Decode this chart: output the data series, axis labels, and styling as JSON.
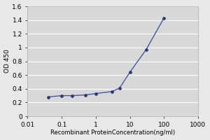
{
  "x": [
    0.04,
    0.1,
    0.2,
    0.5,
    1.0,
    3.0,
    5.0,
    10.0,
    30.0,
    100.0
  ],
  "y": [
    0.28,
    0.3,
    0.3,
    0.31,
    0.33,
    0.36,
    0.41,
    0.64,
    0.97,
    1.43
  ],
  "line_color": "#4457a0",
  "marker_color": "#2e3575",
  "marker_style": "o",
  "marker_size": 2.8,
  "line_width": 1.0,
  "xlabel": "Recombinant ProteinConcentration(ng/ml)",
  "ylabel": "OD 450",
  "xlim": [
    0.01,
    1000
  ],
  "ylim": [
    0,
    1.6
  ],
  "yticks": [
    0,
    0.2,
    0.4,
    0.6,
    0.8,
    1.0,
    1.2,
    1.4,
    1.6
  ],
  "xticks": [
    0.01,
    0.1,
    1,
    10,
    100,
    1000
  ],
  "xtick_labels": [
    "0.01",
    "0.1",
    "1",
    "10",
    "100",
    "1000"
  ],
  "fig_bg_color": "#e8e8e8",
  "plot_bg_color": "#d8d8d8",
  "grid_color": "#ffffff",
  "xlabel_fontsize": 6.0,
  "ylabel_fontsize": 6.5,
  "tick_fontsize": 6.5,
  "spine_color": "#aaaaaa"
}
